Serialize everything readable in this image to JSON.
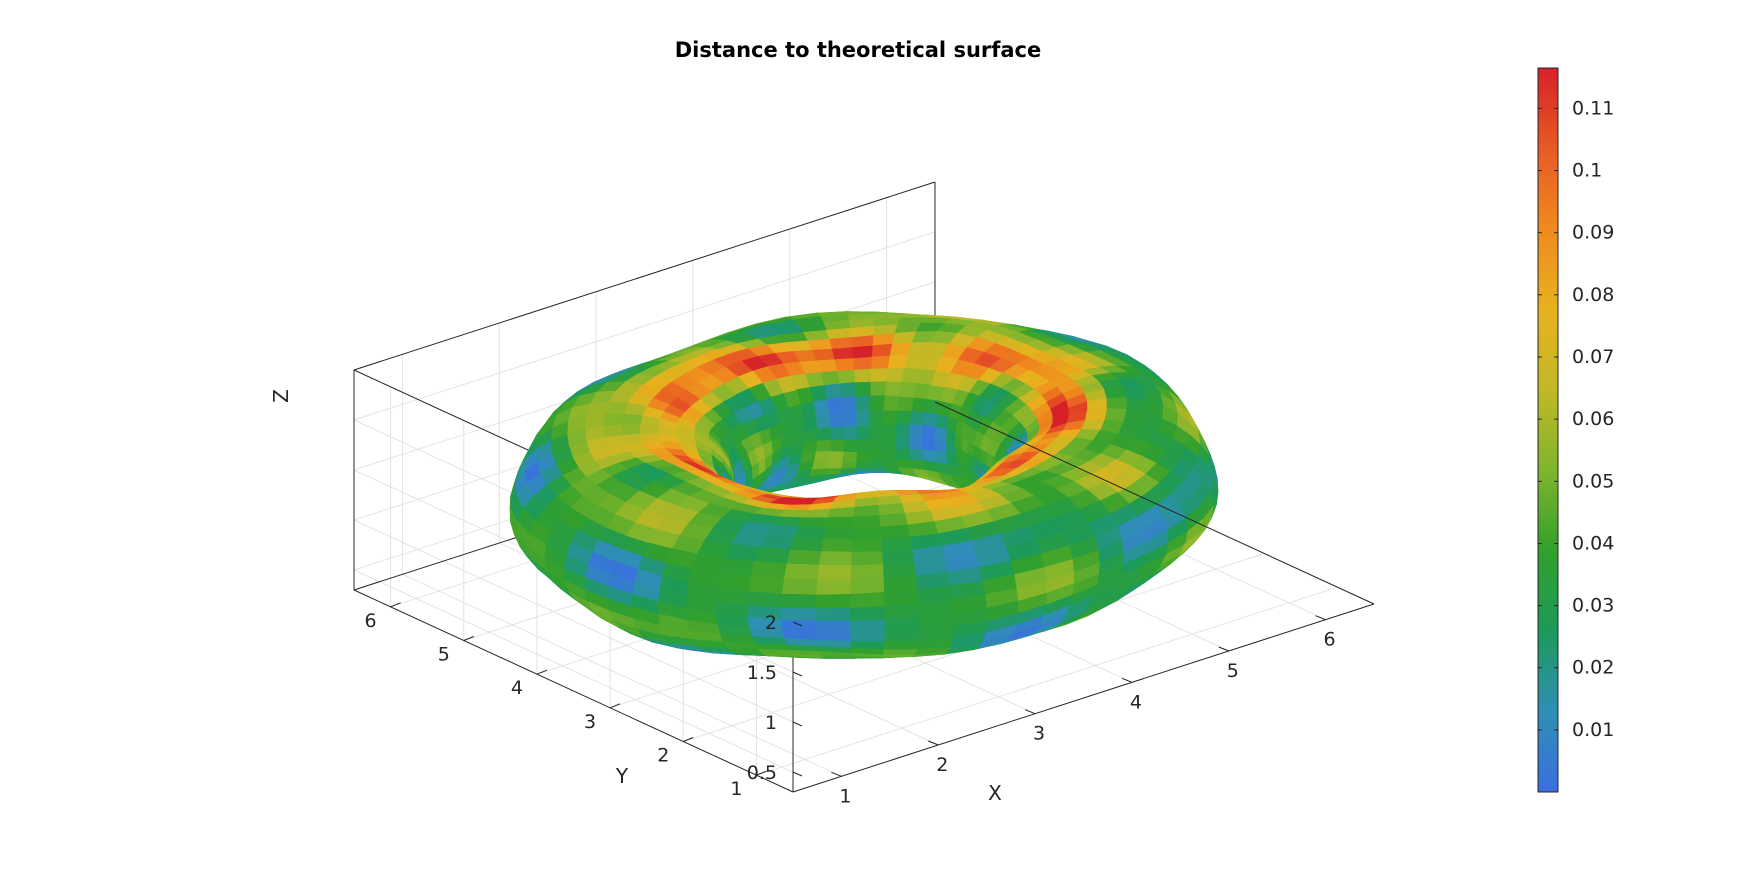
{
  "chart_data": {
    "type": "surface",
    "title": "Distance to theoretical surface",
    "xlabel": "X",
    "ylabel": "Y",
    "zlabel": "Z",
    "x_ticks": [
      "1",
      "2",
      "3",
      "4",
      "5",
      "6"
    ],
    "y_ticks": [
      "1",
      "2",
      "3",
      "4",
      "5",
      "6"
    ],
    "z_ticks": [
      "0.5",
      "1",
      "1.5",
      "2"
    ],
    "xlim": [
      0.5,
      6.5
    ],
    "ylim": [
      0.5,
      6.5
    ],
    "zlim": [
      0.3,
      2.5
    ],
    "grid": true,
    "shape": "torus",
    "torus_center": [
      3.5,
      3.5,
      1.4
    ],
    "major_radius": 2.0,
    "minor_radius": 0.9,
    "colorbar": {
      "location": "right",
      "min": 0.0,
      "max": 0.1165,
      "ticks": [
        "0.01",
        "0.02",
        "0.03",
        "0.04",
        "0.05",
        "0.06",
        "0.07",
        "0.08",
        "0.09",
        "0.1",
        "0.11"
      ],
      "tick_values": [
        0.01,
        0.02,
        0.03,
        0.04,
        0.05,
        0.06,
        0.07,
        0.08,
        0.09,
        0.1,
        0.11
      ],
      "colors": [
        "#3a6fe0",
        "#2f8fb4",
        "#1c9a5a",
        "#33a02c",
        "#7fb52c",
        "#c2b826",
        "#e8b21e",
        "#ef8a1e",
        "#e85a24",
        "#d6202a"
      ]
    }
  }
}
